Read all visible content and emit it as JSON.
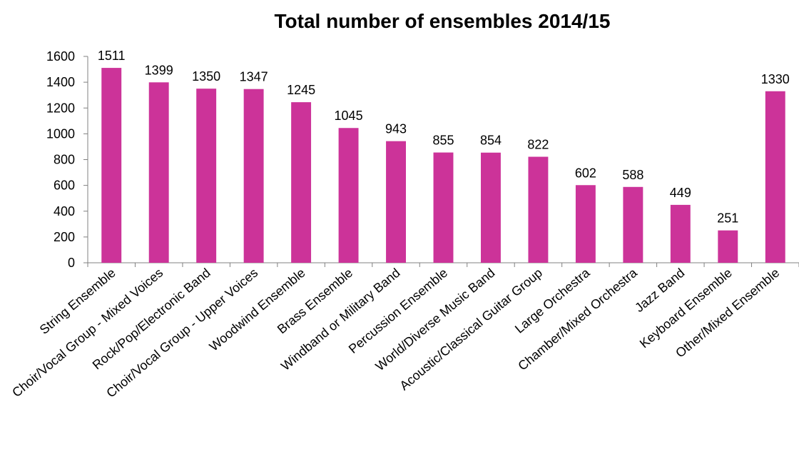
{
  "chart_data": {
    "type": "bar",
    "title": "Total number of ensembles 2014/15",
    "xlabel": "",
    "ylabel": "",
    "ylim": [
      0,
      1600
    ],
    "ytick_step": 200,
    "bar_color": "#CC3399",
    "grid": false,
    "legend": "none",
    "categories": [
      "String Ensemble",
      "Choir/Vocal Group - Mixed Voices",
      "Rock/Pop/Electronic Band",
      "Choir/Vocal Group - Upper Voices",
      "Woodwind Ensemble",
      "Brass Ensemble",
      "Windband or Military Band",
      "Percussion Ensemble",
      "World/Diverse Music Band",
      "Acoustic/Classical Guitar Group",
      "Large Orchestra",
      "Chamber/Mixed Orchestra",
      "Jazz Band",
      "Keyboard Ensemble",
      "Other/Mixed Ensemble"
    ],
    "values": [
      1511,
      1399,
      1350,
      1347,
      1245,
      1045,
      943,
      855,
      854,
      822,
      602,
      588,
      449,
      251,
      1330
    ]
  }
}
